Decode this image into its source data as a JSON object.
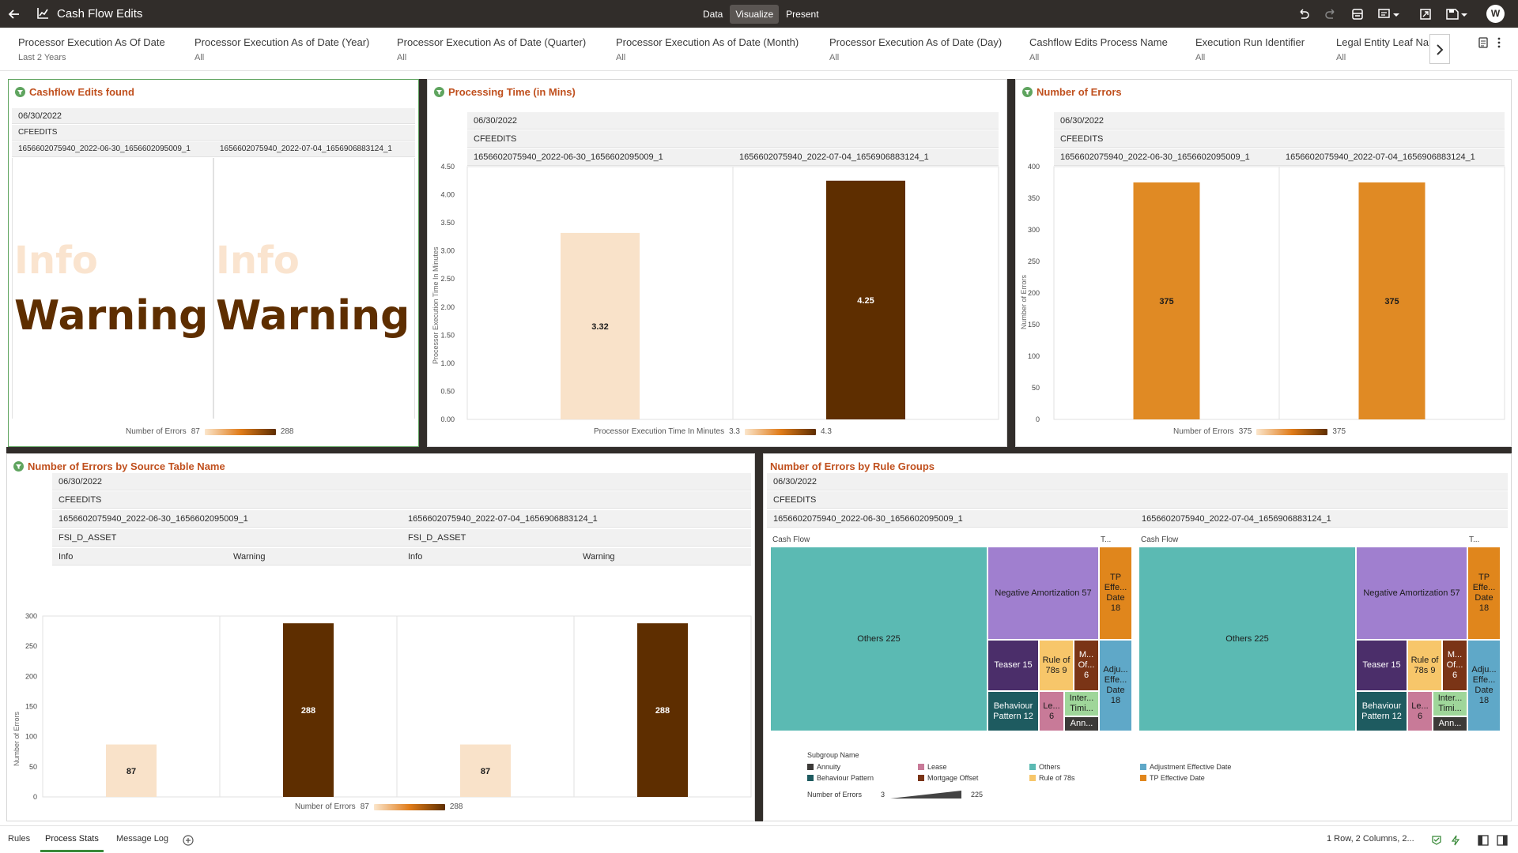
{
  "app": {
    "title": "Cash Flow Edits",
    "modes": [
      "Data",
      "Visualize",
      "Present"
    ],
    "active_mode": "Visualize",
    "user_initial": "W"
  },
  "filters": [
    {
      "name": "Processor Execution As Of Date",
      "value": "Last 2 Years"
    },
    {
      "name": "Processor Execution As of Date (Year)",
      "value": "All"
    },
    {
      "name": "Processor Execution As of Date (Quarter)",
      "value": "All"
    },
    {
      "name": "Processor Execution As of Date (Month)",
      "value": "All"
    },
    {
      "name": "Processor Execution As of Date (Day)",
      "value": "All"
    },
    {
      "name": "Cashflow Edits Process Name",
      "value": "All"
    },
    {
      "name": "Execution Run Identifier",
      "value": "All"
    },
    {
      "name": "Legal Entity Leaf Na",
      "value": "All"
    }
  ],
  "common": {
    "date": "06/30/2022",
    "process": "CFEEDITS",
    "run1": "1656602075940_2022-06-30_1656602095009_1",
    "run2": "1656602075940_2022-07-04_1656906883124_1",
    "table": "FSI_D_ASSET"
  },
  "panel1": {
    "title": "Cashflow Edits found",
    "words": [
      "Info",
      "Warning"
    ],
    "legend_label": "Number of Errors",
    "legend_min": "87",
    "legend_max": "288"
  },
  "panel2": {
    "title": "Processing Time (in Mins)",
    "ylabel": "Processor Execution Time In Minutes",
    "legend_label": "Processor Execution Time In Minutes",
    "legend_min": "3.3",
    "legend_max": "4.3"
  },
  "panel3": {
    "title": "Number of Errors",
    "ylabel": "Number of Errors",
    "legend_label": "Number of Errors",
    "legend_min": "375",
    "legend_max": "375"
  },
  "panel4": {
    "title": "Number of Errors by Source Table Name",
    "ylabel": "Number of Errors",
    "subgroups": [
      "Info",
      "Warning"
    ],
    "legend_label": "Number of Errors",
    "legend_min": "87",
    "legend_max": "288"
  },
  "panel5": {
    "title": "Number of Errors by Rule Groups",
    "group_main": "Cash Flow",
    "group_side": "T...",
    "subgroup_title": "Subgroup Name",
    "subgroup_items": [
      {
        "name": "Annuity",
        "color": "#3c3a38"
      },
      {
        "name": "Lease",
        "color": "#c87a98"
      },
      {
        "name": "Others",
        "color": "#5bbab3"
      },
      {
        "name": "Adjustment Effective Date",
        "color": "#5fa8c8"
      },
      {
        "name": "Behaviour Pattern",
        "color": "#1e5b60"
      },
      {
        "name": "Mortgage Offset",
        "color": "#7a3416"
      },
      {
        "name": "Rule of 78s",
        "color": "#f7c66a"
      },
      {
        "name": "TP Effective Date",
        "color": "#e0861c"
      }
    ],
    "size_label": "Number of Errors",
    "size_min": "3",
    "size_max": "225",
    "tiles": {
      "others": "Others 225",
      "neg_amort": "Negative Amortization 57",
      "teaser": "Teaser 15",
      "rule78": "Rule of 78s 9",
      "mortgage": "M... Of... 6",
      "behaviour": "Behaviour Pattern 12",
      "lease": "Le... 6",
      "inter": "Inter... Timi...",
      "annuity": "Ann...",
      "tp": "TP Effe... Date 18",
      "adj": "Adju... Effe... Date 18"
    }
  },
  "chart_data": [
    {
      "type": "bar",
      "title": "Processing Time (in Mins)",
      "categories": [
        "1656602075940_2022-06-30_1656602095009_1",
        "1656602075940_2022-07-04_1656906883124_1"
      ],
      "values": [
        3.32,
        4.25
      ],
      "value_labels": [
        "3.32",
        "4.25"
      ],
      "colors": [
        "#f9e2c9",
        "#5e2e00"
      ],
      "ylabel": "Processor Execution Time In Minutes",
      "ylim": [
        0,
        4.5
      ],
      "yticks": [
        "0.00",
        "0.50",
        "1.00",
        "1.50",
        "2.00",
        "2.50",
        "3.00",
        "3.50",
        "4.00",
        "4.50"
      ],
      "grid": false
    },
    {
      "type": "bar",
      "title": "Number of Errors",
      "categories": [
        "1656602075940_2022-06-30_1656602095009_1",
        "1656602075940_2022-07-04_1656906883124_1"
      ],
      "values": [
        375,
        375
      ],
      "value_labels": [
        "375",
        "375"
      ],
      "colors": [
        "#e08a24",
        "#e08a24"
      ],
      "ylabel": "Number of Errors",
      "ylim": [
        0,
        400
      ],
      "yticks": [
        "0",
        "50",
        "100",
        "150",
        "200",
        "250",
        "300",
        "350",
        "400"
      ],
      "grid": false
    },
    {
      "type": "bar",
      "title": "Number of Errors by Source Table Name",
      "categories": [
        "Info",
        "Warning",
        "Info",
        "Warning"
      ],
      "values": [
        87,
        288,
        87,
        288
      ],
      "value_labels": [
        "87",
        "288",
        "87",
        "288"
      ],
      "colors": [
        "#f9e2c9",
        "#5e2e00",
        "#f9e2c9",
        "#5e2e00"
      ],
      "ylabel": "Number of Errors",
      "ylim": [
        0,
        300
      ],
      "yticks": [
        "0",
        "50",
        "100",
        "150",
        "200",
        "250",
        "300"
      ],
      "grid": false
    }
  ],
  "bottom": {
    "tabs": [
      "Rules",
      "Process Stats",
      "Message Log"
    ],
    "active_tab": "Process Stats",
    "status": "1 Row, 2 Columns, 2..."
  }
}
